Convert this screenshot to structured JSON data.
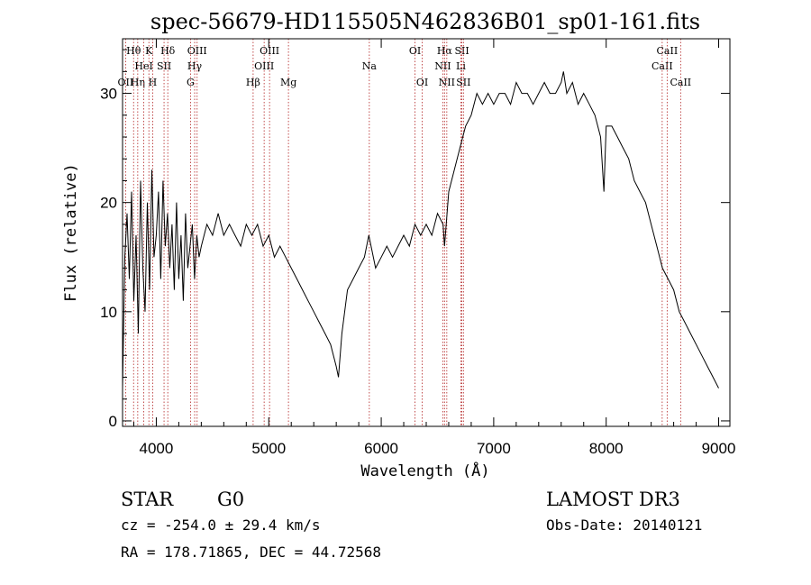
{
  "chart_data": {
    "type": "line",
    "title": "spec-56679-HD115505N462836B01_sp01-161.fits",
    "xlabel": "Wavelength (Å)",
    "ylabel": "Flux (relative)",
    "xlim": [
      3700,
      9100
    ],
    "ylim": [
      -0.5,
      35
    ],
    "xticks": [
      4000,
      5000,
      6000,
      7000,
      8000,
      9000
    ],
    "yticks": [
      0,
      10,
      20,
      30
    ],
    "grid": false,
    "series": [
      {
        "x": [
          3700,
          3720,
          3740,
          3760,
          3780,
          3800,
          3820,
          3840,
          3860,
          3880,
          3900,
          3920,
          3940,
          3960,
          3980,
          4000,
          4020,
          4040,
          4060,
          4080,
          4100,
          4120,
          4140,
          4160,
          4180,
          4200,
          4220,
          4240,
          4260,
          4280,
          4300,
          4320,
          4340,
          4360,
          4380,
          4400,
          4450,
          4500,
          4550,
          4600,
          4650,
          4700,
          4750,
          4800,
          4850,
          4900,
          4950,
          5000,
          5050,
          5100,
          5150,
          5200,
          5250,
          5300,
          5350,
          5400,
          5450,
          5500,
          5550,
          5600,
          5620,
          5650,
          5700,
          5750,
          5800,
          5850,
          5890,
          5950,
          6000,
          6050,
          6100,
          6150,
          6200,
          6250,
          6300,
          6350,
          6400,
          6450,
          6500,
          6550,
          6563,
          6600,
          6650,
          6700,
          6750,
          6800,
          6850,
          6900,
          6950,
          7000,
          7050,
          7100,
          7150,
          7200,
          7250,
          7300,
          7350,
          7400,
          7450,
          7500,
          7550,
          7600,
          7620,
          7650,
          7700,
          7750,
          7800,
          7850,
          7900,
          7950,
          7980,
          8000,
          8050,
          8100,
          8150,
          8200,
          8250,
          8300,
          8350,
          8400,
          8450,
          8500,
          8550,
          8600,
          8650,
          8700,
          8750,
          8800,
          8850,
          8900,
          8950,
          9000
        ],
        "y": [
          3,
          15,
          19,
          13,
          21,
          11,
          17,
          8,
          22,
          14,
          10,
          20,
          12,
          23,
          15,
          17,
          21,
          13,
          22,
          16,
          19,
          14,
          18,
          12,
          20,
          13,
          17,
          11,
          19,
          14,
          16,
          18,
          13,
          17,
          15,
          16,
          18,
          17,
          19,
          17,
          18,
          17,
          16,
          18,
          17,
          18,
          16,
          17,
          15,
          16,
          15,
          14,
          13,
          12,
          11,
          10,
          9,
          8,
          7,
          5,
          4,
          8,
          12,
          13,
          14,
          15,
          17,
          14,
          15,
          16,
          15,
          16,
          17,
          16,
          18,
          17,
          18,
          17,
          19,
          18,
          16,
          21,
          23,
          25,
          27,
          28,
          30,
          29,
          30,
          29,
          30,
          30,
          29,
          31,
          30,
          30,
          29,
          30,
          31,
          30,
          30,
          31,
          32,
          30,
          31,
          29,
          30,
          29,
          28,
          26,
          21,
          27,
          27,
          26,
          25,
          24,
          22,
          21,
          20,
          18,
          16,
          14,
          13,
          12,
          10,
          9,
          8,
          7,
          6,
          5,
          4,
          3
        ]
      }
    ],
    "spectral_lines": [
      {
        "label": "OII",
        "wl": 3727,
        "row": 2
      },
      {
        "label": "Hθ",
        "wl": 3798,
        "row": 0
      },
      {
        "label": "Hη",
        "wl": 3835,
        "row": 2
      },
      {
        "label": "HeI",
        "wl": 3889,
        "row": 1
      },
      {
        "label": "K",
        "wl": 3934,
        "row": 0
      },
      {
        "label": "H",
        "wl": 3968,
        "row": 2
      },
      {
        "label": "SII",
        "wl": 4069,
        "row": 1
      },
      {
        "label": "Hδ",
        "wl": 4102,
        "row": 0
      },
      {
        "label": "G",
        "wl": 4304,
        "row": 2
      },
      {
        "label": "Hγ",
        "wl": 4341,
        "row": 1
      },
      {
        "label": "OIII",
        "wl": 4363,
        "row": 0
      },
      {
        "label": "Hβ",
        "wl": 4861,
        "row": 2
      },
      {
        "label": "OIII",
        "wl": 4959,
        "row": 1
      },
      {
        "label": "OIII",
        "wl": 5007,
        "row": 0
      },
      {
        "label": "Mg",
        "wl": 5175,
        "row": 2
      },
      {
        "label": "Na",
        "wl": 5894,
        "row": 1
      },
      {
        "label": "OI",
        "wl": 6300,
        "row": 0
      },
      {
        "label": "OI",
        "wl": 6364,
        "row": 2
      },
      {
        "label": "NII",
        "wl": 6548,
        "row": 1
      },
      {
        "label": "Hα",
        "wl": 6563,
        "row": 0
      },
      {
        "label": "NII",
        "wl": 6583,
        "row": 2
      },
      {
        "label": "Li",
        "wl": 6708,
        "row": 1
      },
      {
        "label": "SII",
        "wl": 6717,
        "row": 0
      },
      {
        "label": "SII",
        "wl": 6731,
        "row": 2
      },
      {
        "label": "CaII",
        "wl": 8498,
        "row": 1
      },
      {
        "label": "CaII",
        "wl": 8542,
        "row": 0
      },
      {
        "label": "CaII",
        "wl": 8662,
        "row": 2
      }
    ]
  },
  "footer": {
    "class_label": "STAR",
    "subclass": "G0",
    "survey": "LAMOST DR3",
    "cz": "cz = -254.0 ± 29.4 km/s",
    "obs_date": "Obs-Date: 20140121",
    "radec": "RA = 178.71865, DEC =  44.72568"
  },
  "colors": {
    "axis": "#000000",
    "spectrum": "#000000",
    "line_markers": "#b22222"
  }
}
